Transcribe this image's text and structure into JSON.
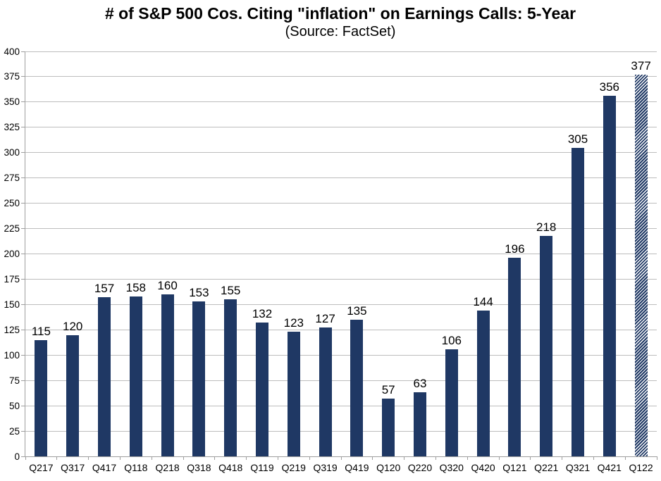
{
  "chart_data": {
    "type": "bar",
    "title": "# of S&P 500 Cos. Citing \"inflation\" on Earnings Calls: 5-Year",
    "subtitle": "(Source: FactSet)",
    "categories": [
      "Q217",
      "Q317",
      "Q417",
      "Q118",
      "Q218",
      "Q318",
      "Q418",
      "Q119",
      "Q219",
      "Q319",
      "Q419",
      "Q120",
      "Q220",
      "Q320",
      "Q420",
      "Q121",
      "Q221",
      "Q321",
      "Q421",
      "Q122"
    ],
    "values": [
      115,
      120,
      157,
      158,
      160,
      153,
      155,
      132,
      123,
      127,
      135,
      57,
      63,
      106,
      144,
      196,
      218,
      305,
      356,
      377
    ],
    "value_labels_shown": true,
    "xlabel": "",
    "ylabel": "",
    "ylim": [
      0,
      400
    ],
    "ytick_step": 25,
    "ytick_labels": [
      "0",
      "25",
      "50",
      "75",
      "100",
      "125",
      "150",
      "175",
      "200",
      "225",
      "250",
      "275",
      "300",
      "325",
      "350",
      "375",
      "400"
    ],
    "grid": "horizontal",
    "legend": "none",
    "bar_color": "#1F3864",
    "hatch_background": "#FFFFFF",
    "hatched_categories": [
      "Q122"
    ],
    "hatch_style": "diagonal-stripes-ascending"
  }
}
